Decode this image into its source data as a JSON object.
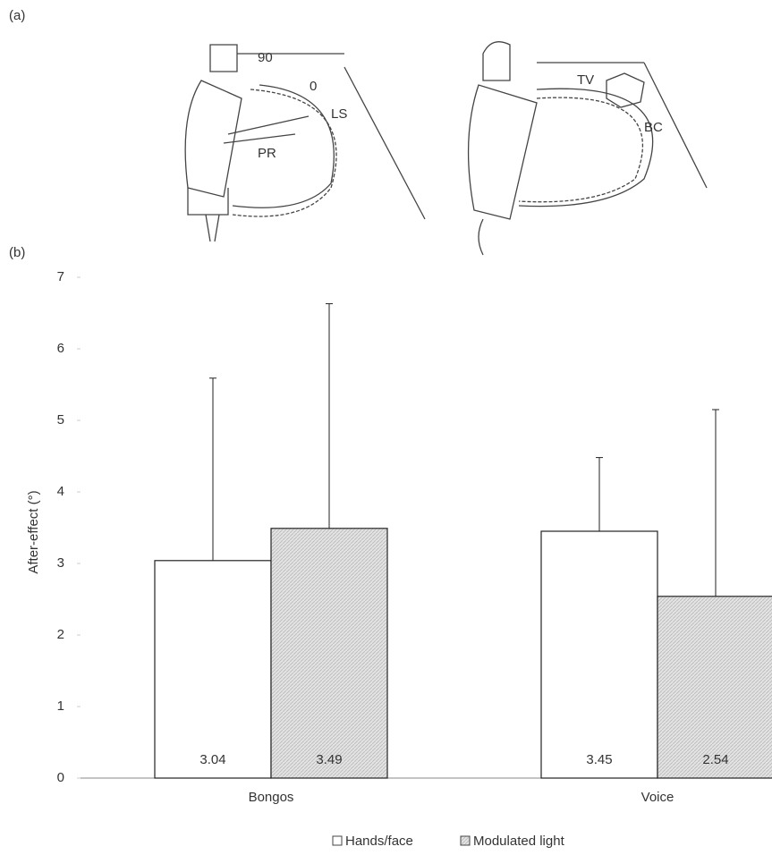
{
  "panel_labels": [
    "(a)",
    "(b)"
  ],
  "illustration": {
    "labels": [
      "90",
      "0",
      "LS",
      "PR",
      "TV",
      "BC"
    ]
  },
  "chart_data": {
    "type": "bar",
    "ylabel": "After-effect (°)",
    "categories": [
      "Bongos",
      "Voice"
    ],
    "series": [
      {
        "name": "Hands/face",
        "color": "#ffffff",
        "values": [
          3.04,
          3.45
        ],
        "errors": [
          2.55,
          1.03
        ]
      },
      {
        "name": "Modulated light",
        "color": "#d9d9d9",
        "values": [
          3.49,
          2.54
        ],
        "errors": [
          3.14,
          2.61
        ]
      }
    ],
    "ylim": [
      0,
      7
    ],
    "yticks": [
      0,
      1,
      2,
      3,
      4,
      5,
      6,
      7
    ],
    "grid": false,
    "legend": "bottom"
  }
}
